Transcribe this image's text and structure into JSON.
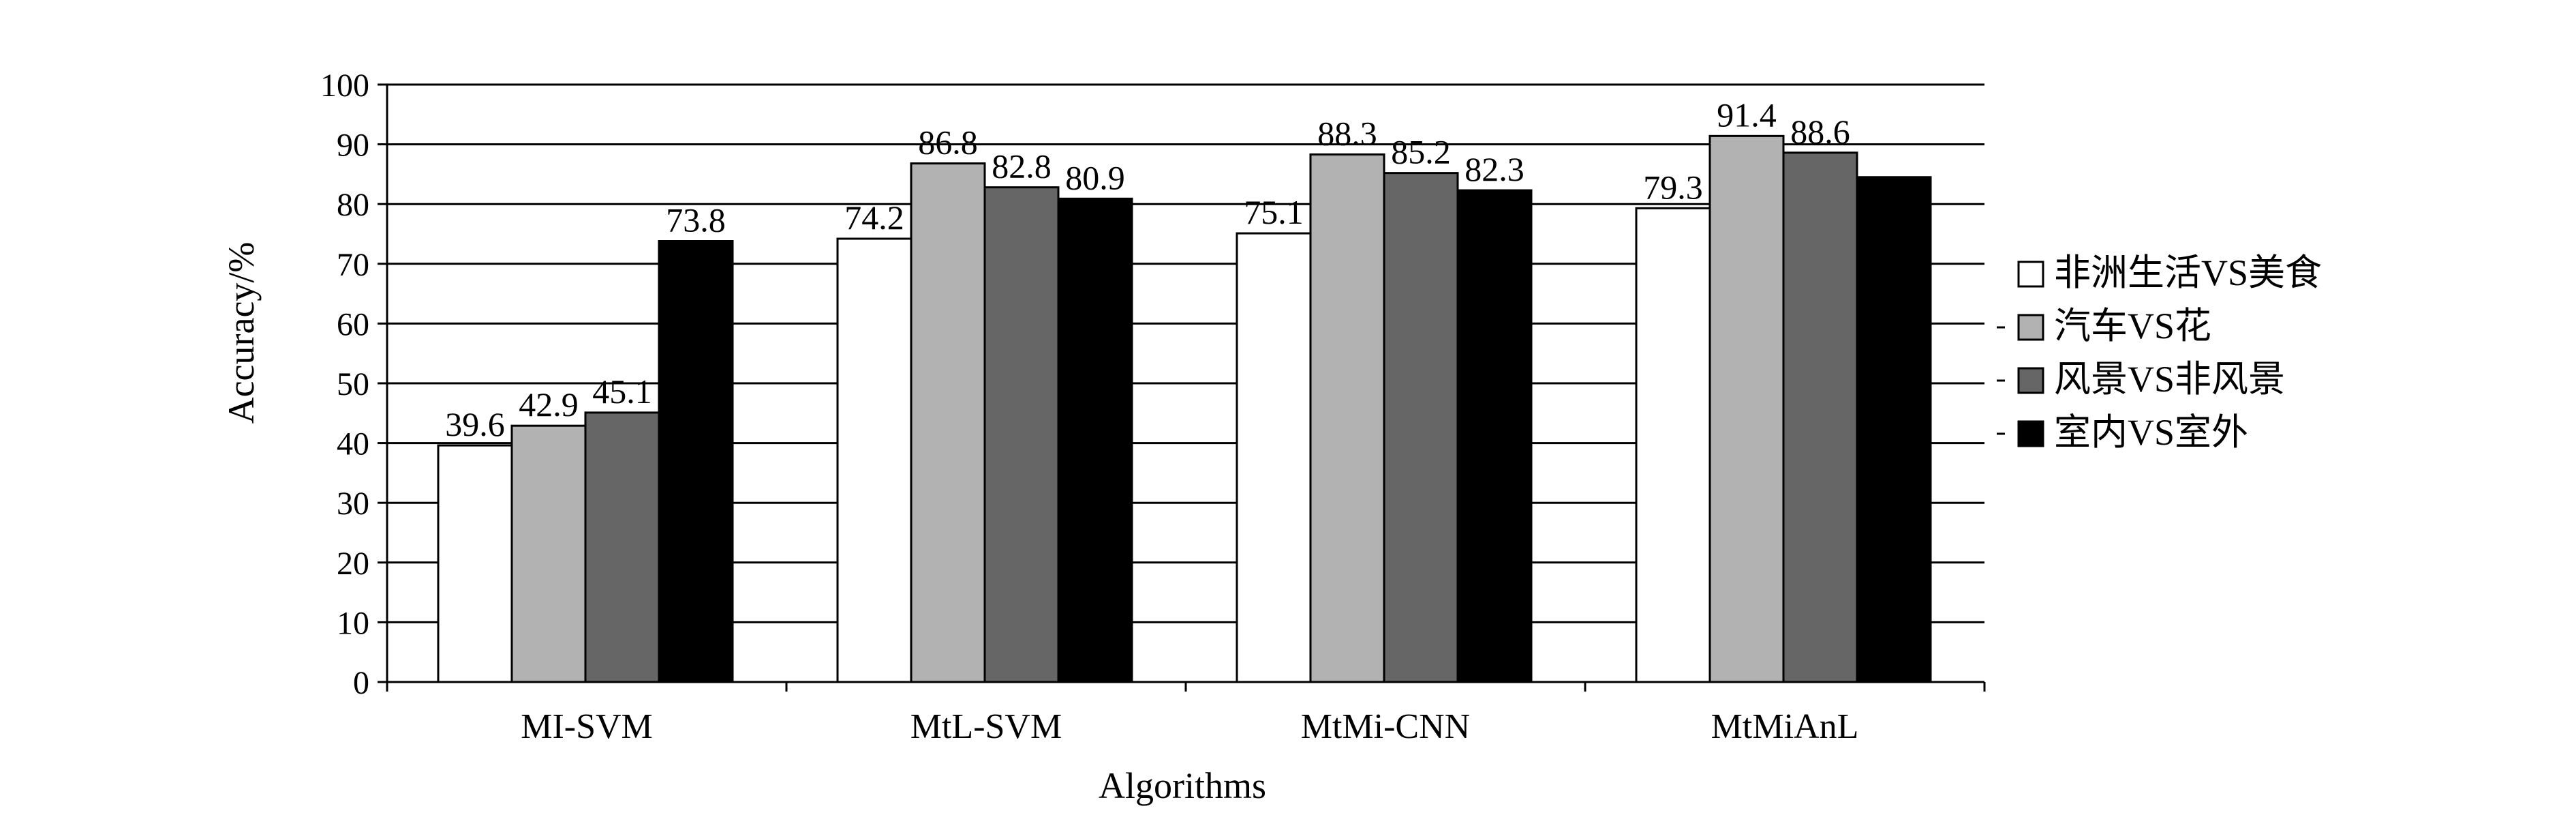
{
  "chart_data": {
    "type": "bar",
    "title": "",
    "xlabel": "Algorithms",
    "ylabel": "Accuracy/%",
    "ylim": [
      0,
      100
    ],
    "yticks": [
      0,
      10,
      20,
      30,
      40,
      50,
      60,
      70,
      80,
      90,
      100
    ],
    "grid": "horizontal",
    "legend_position": "right",
    "categories": [
      "MI-SVM",
      "MtL-SVM",
      "MtMi-CNN",
      "MtMiAnL"
    ],
    "series": [
      {
        "name": "非洲生活VS美食",
        "color": "#ffffff",
        "values": [
          39.6,
          74.2,
          75.1,
          79.3
        ]
      },
      {
        "name": "汽车VS花",
        "color": "#b2b2b2",
        "values": [
          42.9,
          86.8,
          88.3,
          91.4
        ]
      },
      {
        "name": "风景VS非风景",
        "color": "#666666",
        "values": [
          45.1,
          82.8,
          85.2,
          88.6
        ]
      },
      {
        "name": "室内VS室外",
        "color": "#000000",
        "values": [
          73.8,
          80.9,
          82.3,
          84.5
        ]
      }
    ],
    "data_labels": [
      [
        "39.6",
        "74.2",
        "75.1",
        "79.3"
      ],
      [
        "42.9",
        "86.8",
        "88.3",
        "91.4"
      ],
      [
        "45.1",
        "82.8",
        "85.2",
        "88.6"
      ],
      [
        "73.8",
        "80.9",
        "82.3",
        ""
      ]
    ]
  }
}
